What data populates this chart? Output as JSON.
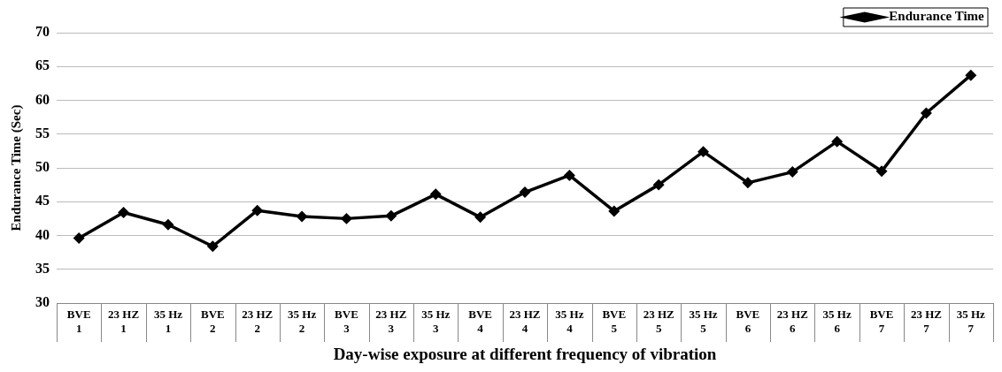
{
  "chart_data": {
    "type": "line",
    "xlabel": "Day-wise exposure at different frequency of vibration",
    "ylabel": "Endurance Time (Sec)",
    "categories": [
      "BVE\n1",
      "23 HZ\n1",
      "35 Hz\n1",
      "BVE\n2",
      "23 HZ\n2",
      "35 Hz\n2",
      "BVE\n3",
      "23 HZ\n3",
      "35 Hz\n3",
      "BVE\n4",
      "23 HZ\n4",
      "35 Hz\n4",
      "BVE\n5",
      "23 HZ\n5",
      "35 Hz\n5",
      "BVE\n6",
      "23 HZ\n6",
      "35 Hz\n6",
      "BVE\n7",
      "23 HZ\n7",
      "35 Hz\n7"
    ],
    "series": [
      {
        "name": "Endurance Time",
        "color": "#000000",
        "values": [
          39.6,
          43.4,
          41.6,
          38.4,
          43.7,
          42.8,
          42.5,
          42.9,
          46.1,
          42.7,
          46.4,
          48.9,
          43.6,
          47.5,
          52.4,
          47.8,
          49.4,
          53.9,
          49.5,
          58.1,
          63.7
        ]
      }
    ],
    "ylim": [
      30,
      70
    ],
    "yticks": [
      30,
      35,
      40,
      45,
      50,
      55,
      60,
      65,
      70
    ],
    "grid": "y",
    "legend": "top right",
    "marker": "diamond",
    "line_style": "solid"
  }
}
